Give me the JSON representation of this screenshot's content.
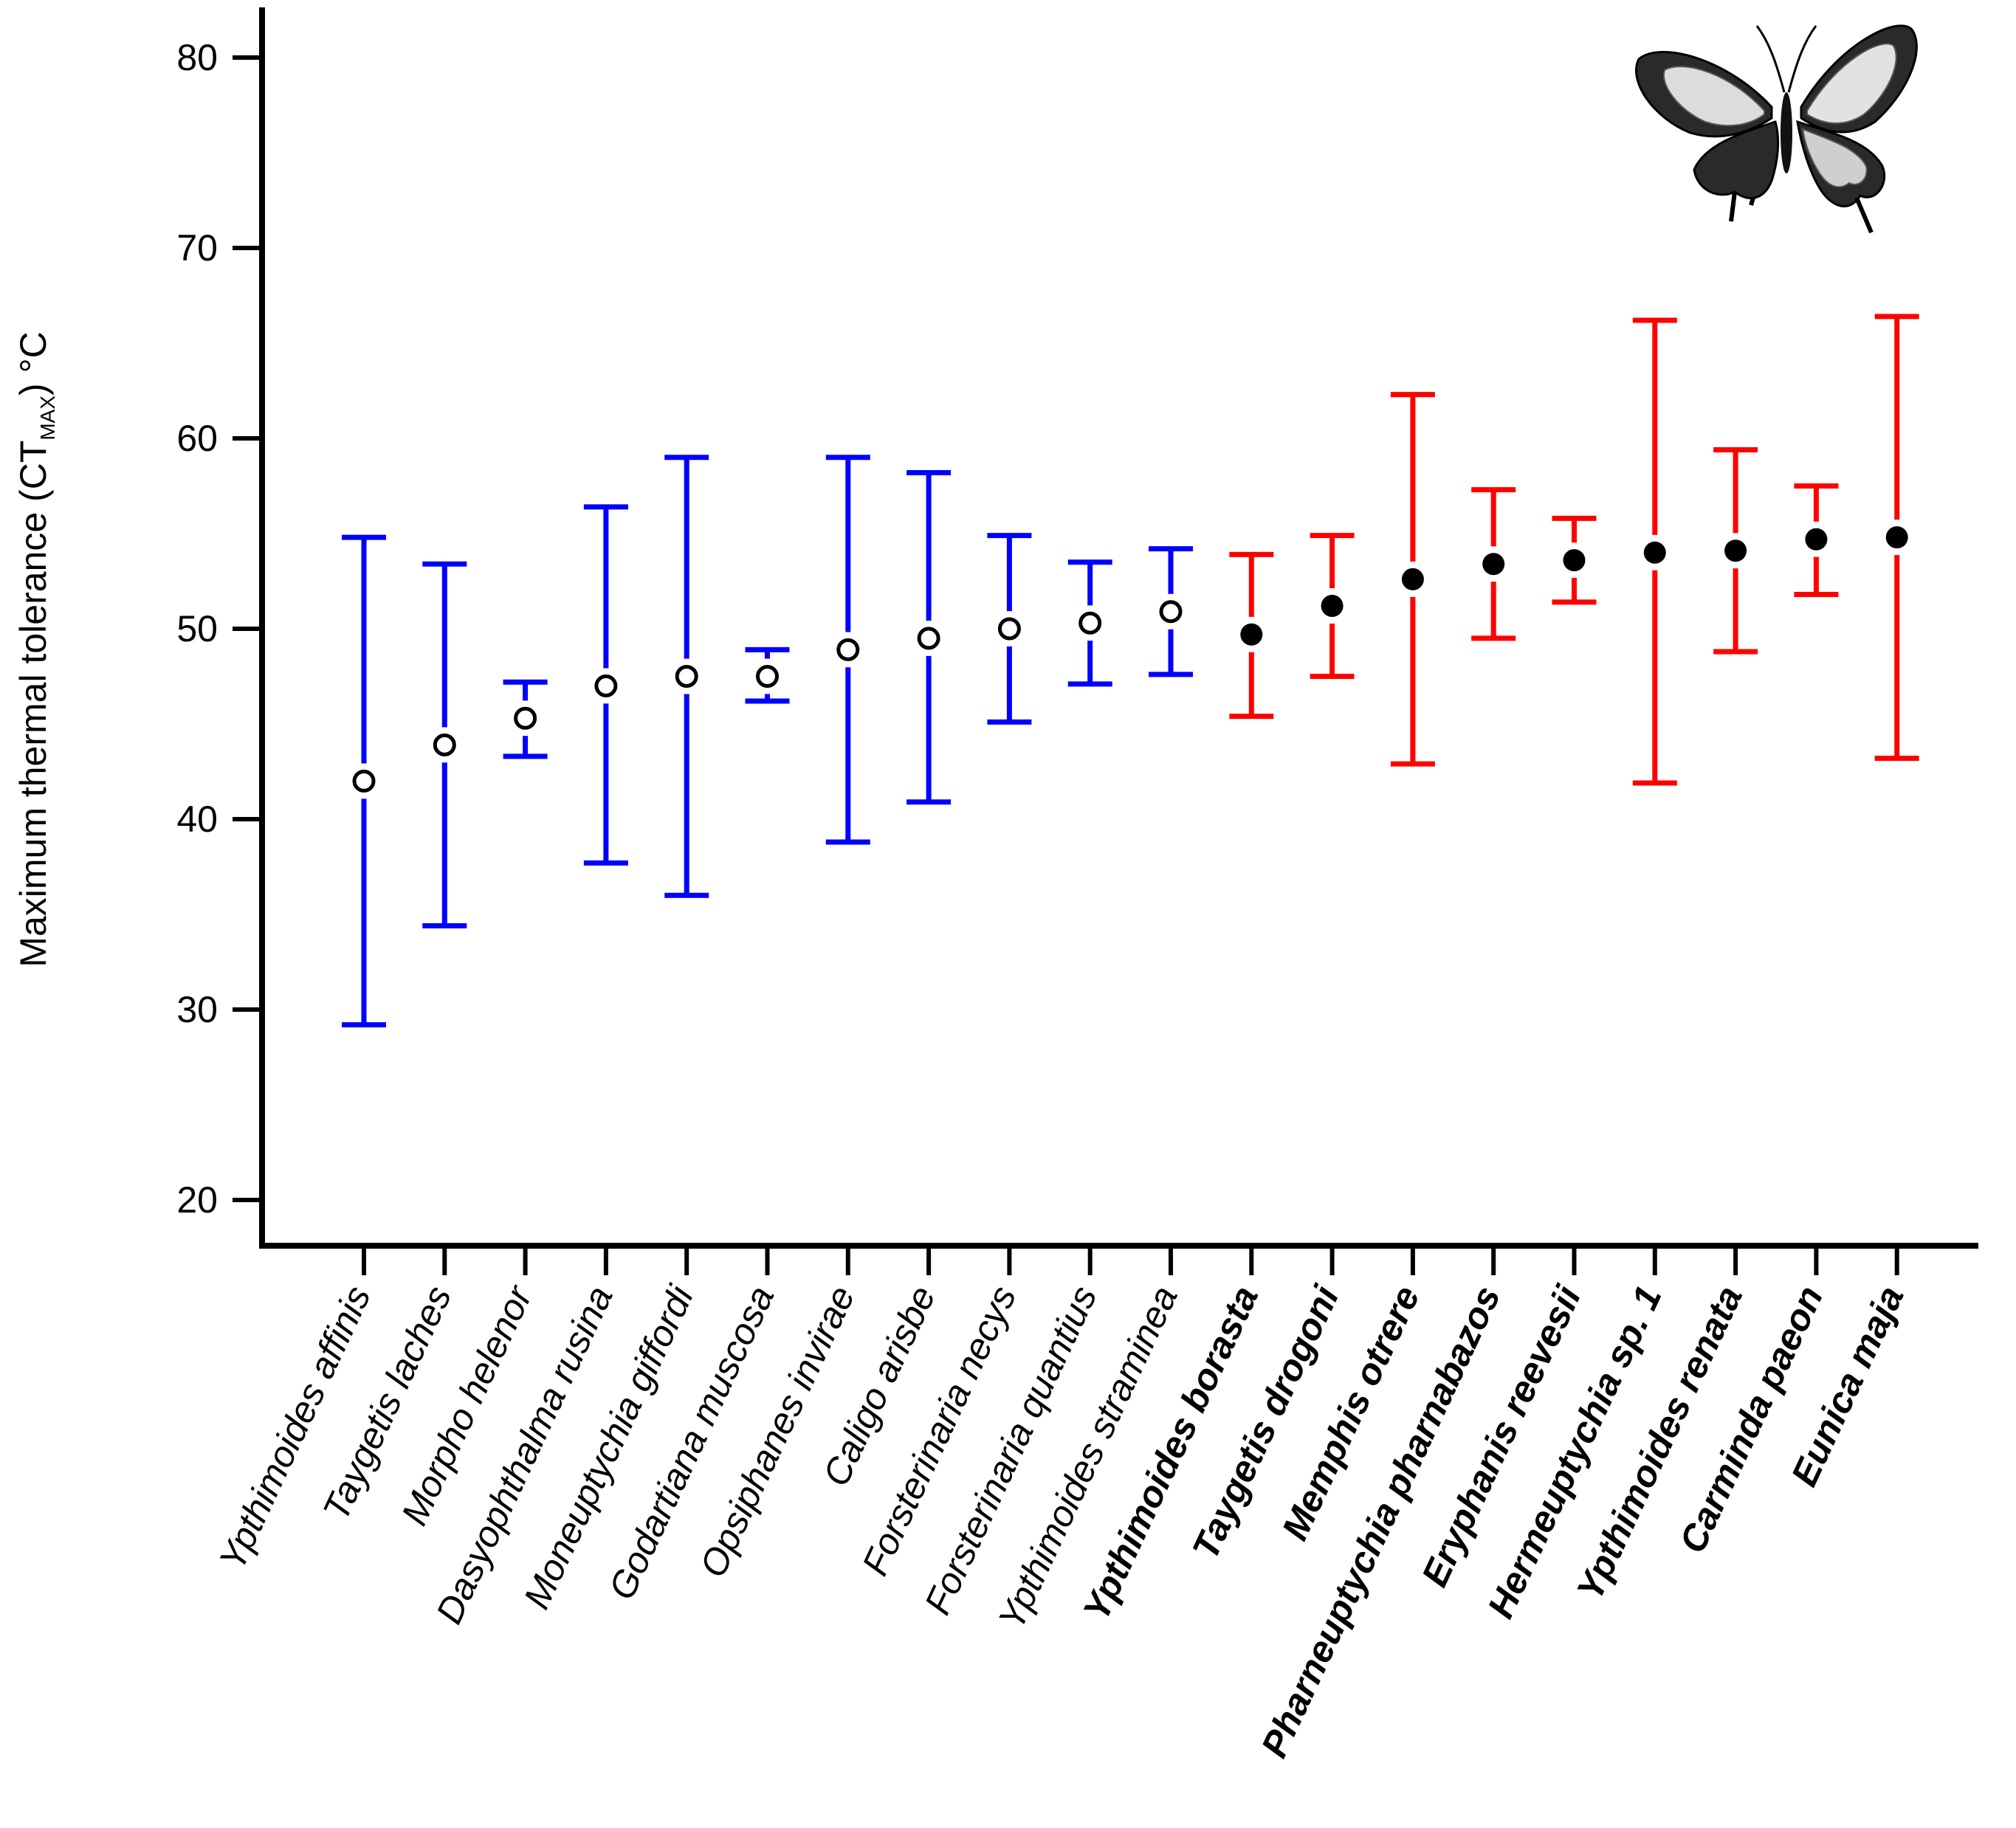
{
  "chart_data": {
    "type": "scatter",
    "title": "",
    "ylabel": {
      "main": "Maximum thermal tolerance (CT",
      "subscript": "MAX",
      "suffix": ") °C"
    },
    "xlabel": "",
    "ylim": [
      20,
      82
    ],
    "yticks": [
      20,
      30,
      40,
      50,
      60,
      70,
      80
    ],
    "grid": false,
    "legend": "none",
    "colors": {
      "blue": "#0000ff",
      "red": "#ff0000",
      "axis": "#000000"
    },
    "groups": {
      "blue": {
        "marker": "open-circle"
      },
      "red": {
        "marker": "filled-circle"
      }
    },
    "series": [
      {
        "name": "Ypthimoides affinis",
        "mean": 42.0,
        "low": 29.2,
        "high": 54.8,
        "group": "blue",
        "bold": false
      },
      {
        "name": "Taygetis laches",
        "mean": 43.9,
        "low": 34.4,
        "high": 53.4,
        "group": "blue",
        "bold": false
      },
      {
        "name": "Morpho helenor",
        "mean": 45.3,
        "low": 43.3,
        "high": 47.2,
        "group": "blue",
        "bold": false
      },
      {
        "name": "Dasyophthalma rusina",
        "mean": 47.0,
        "low": 37.7,
        "high": 56.4,
        "group": "blue",
        "bold": false
      },
      {
        "name": "Moneuptychia giffordi",
        "mean": 47.5,
        "low": 36.0,
        "high": 59.0,
        "group": "blue",
        "bold": false
      },
      {
        "name": "Godartiana muscosa",
        "mean": 47.5,
        "low": 46.2,
        "high": 48.9,
        "group": "blue",
        "bold": false
      },
      {
        "name": "Opsiphanes invirae",
        "mean": 48.9,
        "low": 38.8,
        "high": 59.0,
        "group": "blue",
        "bold": false
      },
      {
        "name": "Caligo arisbe",
        "mean": 49.5,
        "low": 40.9,
        "high": 58.2,
        "group": "blue",
        "bold": false
      },
      {
        "name": "Forsterinaria necys",
        "mean": 50.0,
        "low": 45.1,
        "high": 54.9,
        "group": "blue",
        "bold": false
      },
      {
        "name": "Forsterinaria quantius",
        "mean": 50.3,
        "low": 47.1,
        "high": 53.5,
        "group": "blue",
        "bold": false
      },
      {
        "name": "Ypthimoides straminea",
        "mean": 50.9,
        "low": 47.6,
        "high": 54.2,
        "group": "blue",
        "bold": false
      },
      {
        "name": "Ypthimoides borasta",
        "mean": 49.7,
        "low": 45.4,
        "high": 53.9,
        "group": "red",
        "bold": true
      },
      {
        "name": "Taygetis drogoni",
        "mean": 51.2,
        "low": 47.5,
        "high": 54.9,
        "group": "red",
        "bold": true
      },
      {
        "name": "Memphis otrere",
        "mean": 52.6,
        "low": 42.9,
        "high": 62.3,
        "group": "red",
        "bold": true
      },
      {
        "name": "Pharneuptychia pharnabazos",
        "mean": 53.4,
        "low": 49.5,
        "high": 57.3,
        "group": "red",
        "bold": true
      },
      {
        "name": "Eryphanis reevesii",
        "mean": 53.6,
        "low": 51.4,
        "high": 55.8,
        "group": "red",
        "bold": true
      },
      {
        "name": "Hermeuptychia sp. 1",
        "mean": 54.0,
        "low": 41.9,
        "high": 66.2,
        "group": "red",
        "bold": true
      },
      {
        "name": "Ypthimoides renata",
        "mean": 54.1,
        "low": 48.8,
        "high": 59.4,
        "group": "red",
        "bold": true
      },
      {
        "name": "Carminda paeon",
        "mean": 54.7,
        "low": 51.8,
        "high": 57.5,
        "group": "red",
        "bold": true
      },
      {
        "name": "Eunica maja",
        "mean": 54.8,
        "low": 43.2,
        "high": 66.4,
        "group": "red",
        "bold": true
      }
    ]
  },
  "decoration": {
    "image_icon": "butterfly-icon"
  }
}
